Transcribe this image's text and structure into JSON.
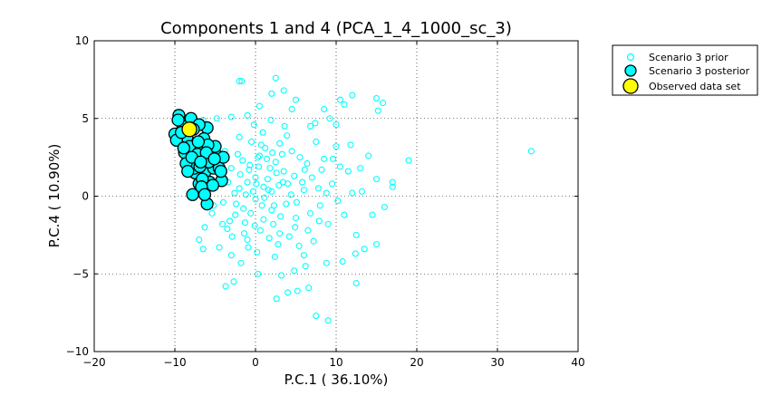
{
  "chart_data": {
    "type": "scatter",
    "title": "Components 1 and 4 (PCA_1_4_1000_sc_3)",
    "xlabel": "P.C.1 (   36.10%)",
    "ylabel": "P.C.4 (   10.90%)",
    "xlim": [
      -20,
      40
    ],
    "ylim": [
      -10,
      10
    ],
    "xticks": [
      -20,
      -10,
      0,
      10,
      20,
      30,
      40
    ],
    "yticks": [
      -10,
      -5,
      0,
      5,
      10
    ],
    "xtick_labels": [
      "−20",
      "−10",
      "0",
      "10",
      "20",
      "30",
      "40"
    ],
    "ytick_labels": [
      "−10",
      "−5",
      "0",
      "5",
      "10"
    ],
    "grid": true,
    "legend_position": "outside-top-right",
    "series": [
      {
        "name": "Scenario 3 prior",
        "marker": "open-circle",
        "color": "#00ffff",
        "points": [
          [
            -2,
            0.5
          ],
          [
            -1.5,
            -0.8
          ],
          [
            0,
            1.2
          ],
          [
            1,
            -1.5
          ],
          [
            2,
            0.3
          ],
          [
            -3,
            1.8
          ],
          [
            3,
            -2.4
          ],
          [
            0.5,
            2.6
          ],
          [
            -1,
            -2.8
          ],
          [
            1.5,
            1.1
          ],
          [
            -2.5,
            -1.2
          ],
          [
            2.5,
            2.2
          ],
          [
            4,
            0.8
          ],
          [
            -4,
            -0.4
          ],
          [
            0,
            -0.2
          ],
          [
            1,
            0.6
          ],
          [
            -1,
            0.9
          ],
          [
            2,
            -0.9
          ],
          [
            3.5,
            1.6
          ],
          [
            -3.5,
            -2.1
          ],
          [
            5,
            -1.4
          ],
          [
            4.5,
            2.9
          ],
          [
            -0.5,
            3.5
          ],
          [
            0.2,
            -3.6
          ],
          [
            6,
            0.4
          ],
          [
            -5,
            0.6
          ],
          [
            2.8,
            -3.1
          ],
          [
            -2.2,
            2.7
          ],
          [
            1.2,
            3.1
          ],
          [
            3,
            3.4
          ],
          [
            5.5,
            2.5
          ],
          [
            6.5,
            -2.2
          ],
          [
            7,
            1.2
          ],
          [
            8,
            -0.6
          ],
          [
            8.5,
            2.4
          ],
          [
            9,
            -1.8
          ],
          [
            7.5,
            3.5
          ],
          [
            6,
            -3.8
          ],
          [
            9.5,
            0.8
          ],
          [
            10,
            3.2
          ],
          [
            11,
            -1.2
          ],
          [
            10.5,
            1.9
          ],
          [
            12,
            0.2
          ],
          [
            12.5,
            -2.5
          ],
          [
            11.5,
            1.6
          ],
          [
            13,
            1.8
          ],
          [
            14,
            2.6
          ],
          [
            15,
            1.1
          ],
          [
            14.5,
            -1.2
          ],
          [
            13.5,
            -3.4
          ],
          [
            15,
            -3.1
          ],
          [
            16,
            -0.7
          ],
          [
            17,
            0.6
          ],
          [
            17,
            0.9
          ],
          [
            19,
            2.3
          ],
          [
            34.2,
            2.9
          ],
          [
            15.2,
            5.5
          ],
          [
            15,
            6.3
          ],
          [
            15.8,
            6
          ],
          [
            12,
            6.5
          ],
          [
            10.5,
            6.2
          ],
          [
            11,
            5.9
          ],
          [
            2.5,
            7.6
          ],
          [
            -2,
            7.4
          ],
          [
            -1.7,
            7.4
          ],
          [
            3.5,
            6.8
          ],
          [
            5,
            6.2
          ],
          [
            4.5,
            5.6
          ],
          [
            0.5,
            5.8
          ],
          [
            -1,
            5.2
          ],
          [
            2,
            6.6
          ],
          [
            8.5,
            5.6
          ],
          [
            9.2,
            5
          ],
          [
            10,
            4.6
          ],
          [
            7.5,
            -7.7
          ],
          [
            9,
            -8
          ],
          [
            2.6,
            -6.6
          ],
          [
            4,
            -6.2
          ],
          [
            5.2,
            -6.1
          ],
          [
            6.6,
            -5.9
          ],
          [
            12.5,
            -5.6
          ],
          [
            -3.7,
            -5.8
          ],
          [
            -2.7,
            -5.5
          ],
          [
            0.3,
            -5
          ],
          [
            3.2,
            -5.1
          ],
          [
            4.8,
            -4.8
          ],
          [
            6.2,
            -4.5
          ],
          [
            8.8,
            -4.3
          ],
          [
            10.8,
            -4.2
          ],
          [
            12.4,
            -3.7
          ],
          [
            -1.8,
            -4.3
          ],
          [
            -3,
            -3.8
          ],
          [
            -4.5,
            -3.3
          ],
          [
            -6.5,
            -3.4
          ],
          [
            -7,
            -2.8
          ],
          [
            -6.3,
            -2
          ],
          [
            -5.4,
            -1.1
          ],
          [
            -4.2,
            1.2
          ],
          [
            -3.8,
            2.9
          ],
          [
            -5.6,
            3.2
          ],
          [
            -6.5,
            4.9
          ],
          [
            -4.8,
            5
          ],
          [
            -3,
            5.1
          ],
          [
            -0.2,
            4.6
          ],
          [
            1.9,
            4.9
          ],
          [
            3.6,
            4.5
          ],
          [
            6.8,
            4.5
          ],
          [
            7.4,
            4.7
          ],
          [
            -0.8,
            1.7
          ],
          [
            0.8,
            -0.6
          ],
          [
            1.8,
            1.8
          ],
          [
            -1.3,
            -1.7
          ],
          [
            2.2,
            -1.8
          ],
          [
            -2.6,
            0.2
          ],
          [
            3.8,
            -0.5
          ],
          [
            4.8,
            1.3
          ],
          [
            -0.3,
            0.3
          ],
          [
            0.6,
            -2.2
          ],
          [
            2.9,
            0.7
          ],
          [
            -1.9,
            1.4
          ],
          [
            4.2,
            -2.6
          ],
          [
            5.8,
            0.9
          ],
          [
            -3.2,
            -1.6
          ],
          [
            1.4,
            2.4
          ],
          [
            6.8,
            -1.1
          ],
          [
            7.8,
            0.5
          ],
          [
            8.2,
            1.7
          ],
          [
            -0.9,
            -3.3
          ],
          [
            2.4,
            -3.9
          ],
          [
            5.4,
            -3.2
          ],
          [
            -2.9,
            -2.6
          ],
          [
            0.9,
            4.1
          ],
          [
            3.3,
            2.7
          ],
          [
            6.4,
            2.1
          ],
          [
            -4.6,
            2.1
          ],
          [
            7.2,
            -2.9
          ],
          [
            9.6,
            2.4
          ],
          [
            10.2,
            -0.3
          ],
          [
            11.8,
            3.3
          ],
          [
            13.2,
            0.3
          ],
          [
            -1.2,
            0.1
          ],
          [
            0.1,
            0.8
          ],
          [
            1.1,
            -0.1
          ],
          [
            -0.6,
            -1.1
          ],
          [
            2.6,
            1.5
          ],
          [
            -2.4,
            -0.5
          ],
          [
            3.1,
            -1.3
          ],
          [
            0.4,
            1.9
          ],
          [
            -1.6,
            2.3
          ],
          [
            1.7,
            -2.7
          ],
          [
            4.4,
            0.1
          ],
          [
            -3.4,
            0.9
          ],
          [
            5.1,
            -0.4
          ],
          [
            -0.1,
            -1.9
          ],
          [
            2.1,
            2.8
          ],
          [
            6.1,
            1.7
          ],
          [
            -4.1,
            -1.8
          ],
          [
            3.9,
            3.9
          ],
          [
            7.9,
            -1.6
          ],
          [
            8.8,
            0.2
          ],
          [
            -2,
            3.8
          ],
          [
            0.7,
            3.3
          ],
          [
            4.9,
            -2
          ],
          [
            -5.2,
            -0.6
          ],
          [
            1.6,
            0.4
          ],
          [
            -0.7,
            2
          ],
          [
            2.3,
            -0.6
          ],
          [
            3.4,
            0.9
          ],
          [
            -1.4,
            -2.4
          ],
          [
            0.3,
            2.5
          ]
        ]
      },
      {
        "name": "Scenario 3 posterior",
        "marker": "filled-circle",
        "color": "#00ffff",
        "edge_color": "#000000",
        "points": [
          [
            -10,
            4
          ],
          [
            -9.5,
            5.2
          ],
          [
            -9,
            4.5
          ],
          [
            -8.5,
            3.8
          ],
          [
            -8,
            5
          ],
          [
            -9.8,
            3.6
          ],
          [
            -8.8,
            2.8
          ],
          [
            -8,
            2.2
          ],
          [
            -7.5,
            1.5
          ],
          [
            -7,
            0.8
          ],
          [
            -6.5,
            0.3
          ],
          [
            -6,
            -0.5
          ],
          [
            -7.3,
            3
          ],
          [
            -6.8,
            2.4
          ],
          [
            -6.2,
            1.6
          ],
          [
            -5.7,
            0.9
          ],
          [
            -5.2,
            1.8
          ],
          [
            -4.8,
            2.6
          ],
          [
            -4.2,
            1
          ],
          [
            -4,
            2.5
          ],
          [
            -5.5,
            3
          ],
          [
            -5,
            3.2
          ],
          [
            -6,
            4.4
          ],
          [
            -7,
            4.6
          ],
          [
            -8.2,
            3.2
          ],
          [
            -7.8,
            0.1
          ],
          [
            -7.6,
            1.8
          ],
          [
            -8.6,
            2.1
          ],
          [
            -6.6,
            1.1
          ],
          [
            -5.8,
            2.2
          ],
          [
            -6.4,
            3.7
          ],
          [
            -7.2,
            2.7
          ],
          [
            -9.2,
            4.1
          ],
          [
            -8.9,
            3.1
          ],
          [
            -6.9,
            1.9
          ],
          [
            -5.3,
            0.7
          ],
          [
            -7.7,
            4.3
          ],
          [
            -6.7,
            0.6
          ],
          [
            -5.9,
            3.3
          ],
          [
            -4.5,
            1.8
          ],
          [
            -7.9,
            2.5
          ],
          [
            -8.4,
            1.6
          ],
          [
            -9.6,
            4.9
          ],
          [
            -6.1,
            2.8
          ],
          [
            -7.1,
            3.5
          ],
          [
            -6.3,
            0.1
          ],
          [
            -5.1,
            2.4
          ],
          [
            -4.3,
            1.6
          ],
          [
            -8.1,
            4.4
          ],
          [
            -6.8,
            2.2
          ]
        ]
      },
      {
        "name": "Observed data set",
        "marker": "filled-circle",
        "color": "#ffff00",
        "edge_color": "#000000",
        "points": [
          [
            -8.2,
            4.3
          ]
        ]
      }
    ]
  }
}
